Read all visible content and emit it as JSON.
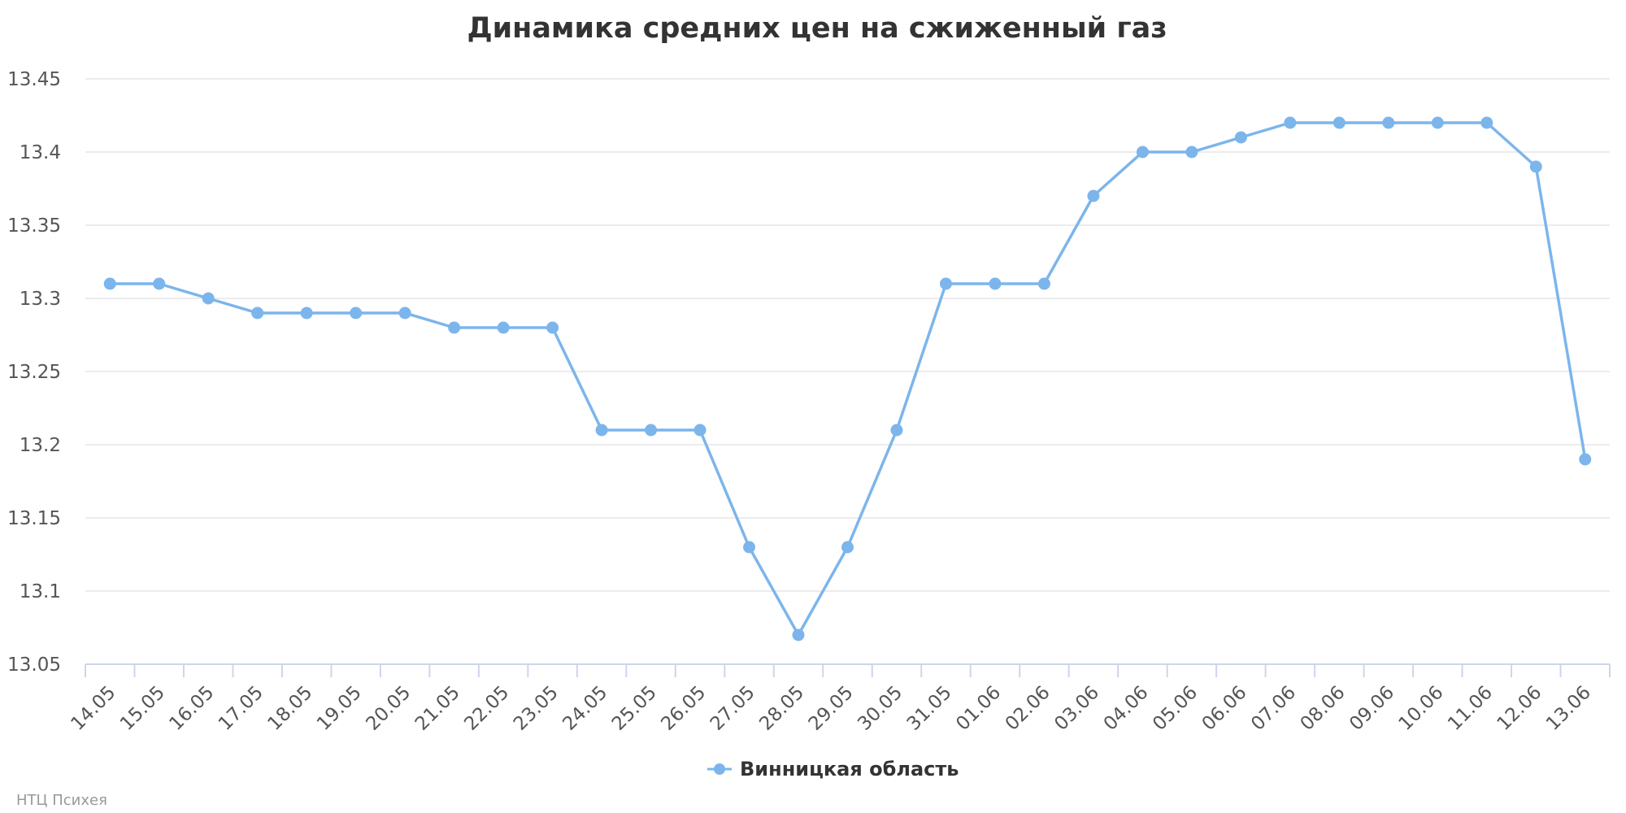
{
  "chart_data": {
    "type": "line",
    "title": "Динамика средних цен на сжиженный газ",
    "xlabel": "",
    "ylabel": "",
    "categories": [
      "14.05",
      "15.05",
      "16.05",
      "17.05",
      "18.05",
      "19.05",
      "20.05",
      "21.05",
      "22.05",
      "23.05",
      "24.05",
      "25.05",
      "26.05",
      "27.05",
      "28.05",
      "29.05",
      "30.05",
      "31.05",
      "01.06",
      "02.06",
      "03.06",
      "04.06",
      "05.06",
      "06.06",
      "07.06",
      "08.06",
      "09.06",
      "10.06",
      "11.06",
      "12.06",
      "13.06"
    ],
    "y_ticks": [
      "13.05",
      "13.1",
      "13.15",
      "13.2",
      "13.25",
      "13.3",
      "13.35",
      "13.4",
      "13.45"
    ],
    "ylim": [
      13.05,
      13.45
    ],
    "grid": true,
    "legend_position": "bottom-center",
    "series": [
      {
        "name": "Винницкая область",
        "color": "#7cb5ec",
        "values": [
          13.31,
          13.31,
          13.3,
          13.29,
          13.29,
          13.29,
          13.29,
          13.28,
          13.28,
          13.28,
          13.21,
          13.21,
          13.21,
          13.13,
          13.07,
          13.13,
          13.21,
          13.31,
          13.31,
          13.31,
          13.37,
          13.4,
          13.4,
          13.41,
          13.42,
          13.42,
          13.42,
          13.42,
          13.42,
          13.39,
          13.19
        ]
      }
    ],
    "credits": "НТЦ Психея"
  }
}
